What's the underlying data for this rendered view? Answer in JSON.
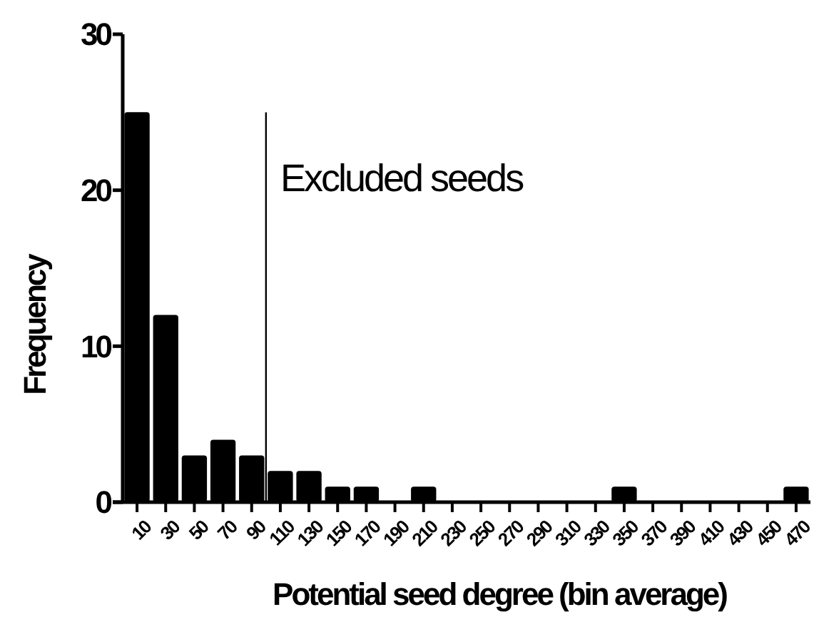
{
  "chart_data": {
    "type": "bar",
    "xlabel": "Potential seed degree (bin average)",
    "ylabel": "Frequency",
    "x": [
      10,
      30,
      50,
      70,
      90,
      110,
      130,
      150,
      170,
      190,
      210,
      230,
      250,
      270,
      290,
      310,
      330,
      350,
      370,
      390,
      410,
      430,
      450,
      470
    ],
    "values": [
      25,
      12,
      3,
      4,
      3,
      2,
      2,
      1,
      1,
      0,
      1,
      0,
      0,
      0,
      0,
      0,
      0,
      1,
      0,
      0,
      0,
      0,
      0,
      1
    ],
    "color": "#000000",
    "xlim": [
      0,
      480
    ],
    "xticks": [
      10,
      30,
      50,
      70,
      90,
      110,
      130,
      150,
      170,
      190,
      210,
      230,
      250,
      270,
      290,
      310,
      330,
      350,
      370,
      390,
      410,
      430,
      450,
      470
    ],
    "ylim": [
      0,
      30
    ],
    "yticks": [
      0,
      10,
      20,
      30
    ],
    "ref_lines": [
      {
        "axis": "x",
        "value": 100,
        "color": "#000000"
      }
    ],
    "annotations": [
      "Excluded seeds"
    ],
    "grid": false
  }
}
